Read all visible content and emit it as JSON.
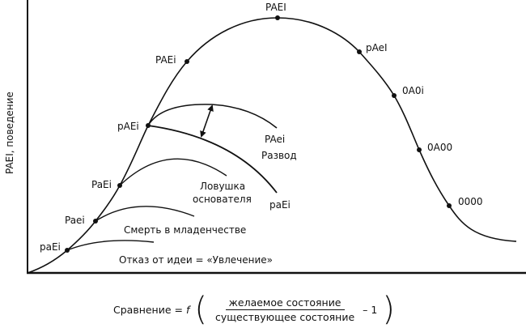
{
  "y_axis_label": "PAEI, поведение",
  "main_curve_points": [
    "paEi",
    "Paei",
    "PaEi",
    "pAEi",
    "PAEi",
    "PAEI",
    "pAeI",
    "0A0i",
    "0A00",
    "0000"
  ],
  "branches": {
    "idea_rejection": "Отказ от идеи = «Увлечение»",
    "infant_death": "Смерть в младенчестве",
    "founder_trap_line1": "Ловушка",
    "founder_trap_line2": "основателя",
    "divorce_upper": "PAei",
    "divorce": "Развод",
    "divorce_lower": "paEi"
  },
  "formula": {
    "lhs": "Сравнение =",
    "f": "f",
    "numerator": "желаемое состояние",
    "denominator": "существующее состояние",
    "minus_one": "– 1"
  }
}
